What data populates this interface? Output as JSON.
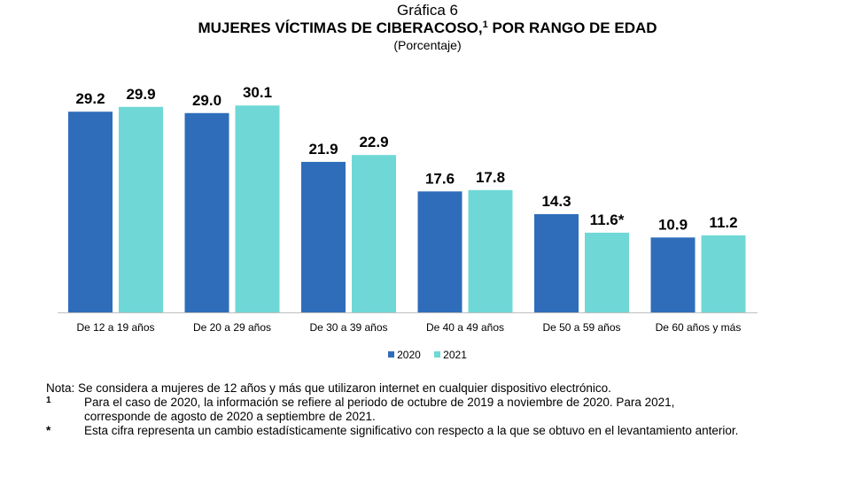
{
  "header": {
    "kicker": "Gráfica 6",
    "title_main": "MUJERES VÍCTIMAS DE CIBERACOSO,",
    "title_sup": "1",
    "title_rest": "POR RANGO DE EDAD",
    "subtitle": "(Porcentaje)"
  },
  "chart_data": {
    "type": "bar",
    "title": "MUJERES VÍCTIMAS DE CIBERACOSO, POR RANGO DE EDAD",
    "subtitle": "(Porcentaje)",
    "categories": [
      "De 12 a 19 años",
      "De 20 a 29 años",
      "De 30 a 39 años",
      "De 40 a 49 años",
      "De 50 a 59 años",
      "De 60 años y más"
    ],
    "series": [
      {
        "name": "2020",
        "values": [
          29.2,
          29.0,
          21.9,
          17.6,
          14.3,
          10.9
        ],
        "labels": [
          "29.2",
          "29.0",
          "21.9",
          "17.6",
          "14.3",
          "10.9"
        ],
        "color": "#2f6dba"
      },
      {
        "name": "2021",
        "values": [
          29.9,
          30.1,
          22.9,
          17.8,
          11.6,
          11.2
        ],
        "labels": [
          "29.9",
          "30.1",
          "22.9",
          "17.8",
          "11.6*",
          "11.2"
        ],
        "color": "#6fd8d6"
      }
    ],
    "ylim": [
      0,
      33
    ],
    "grid": false,
    "legend": "bottom"
  },
  "notes": {
    "main_label": "Nota:",
    "main_text": "Se considera a mujeres de 12 años y más que utilizaron internet en cualquier dispositivo electrónico.",
    "n1_label": "1",
    "n1_text": "Para el caso de 2020, la información se refiere al periodo de octubre de 2019 a noviembre de 2020. Para 2021, corresponde de agosto de 2020 a septiembre de 2021.",
    "star_label": "*",
    "star_text": "Esta cifra representa un cambio estadísticamente significativo con respecto a la que se obtuvo en el levantamiento anterior."
  }
}
